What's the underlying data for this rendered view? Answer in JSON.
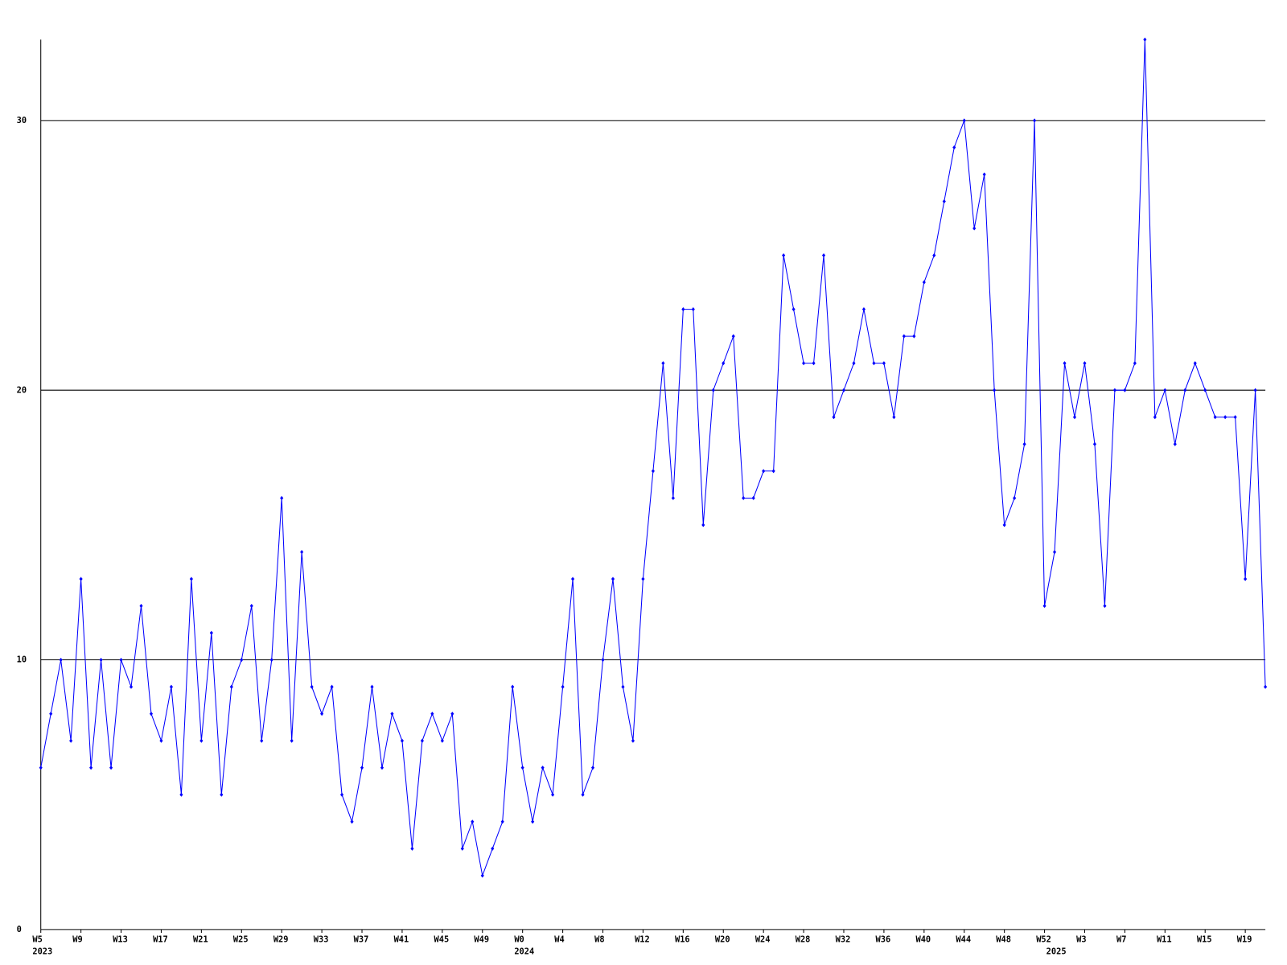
{
  "chart_data": {
    "type": "line",
    "categories": [
      "W5",
      null,
      null,
      null,
      "W9",
      null,
      null,
      null,
      "W13",
      null,
      null,
      null,
      "W17",
      null,
      null,
      null,
      "W21",
      null,
      null,
      null,
      "W25",
      null,
      null,
      null,
      "W29",
      null,
      null,
      null,
      "W33",
      null,
      null,
      null,
      "W37",
      null,
      null,
      null,
      "W41",
      null,
      null,
      null,
      "W45",
      null,
      null,
      null,
      "W49",
      null,
      null,
      null,
      "W0",
      null,
      null,
      null,
      "W4",
      null,
      null,
      null,
      "W8",
      null,
      null,
      null,
      "W12",
      null,
      null,
      null,
      "W16",
      null,
      null,
      null,
      "W20",
      null,
      null,
      null,
      "W24",
      null,
      null,
      null,
      "W28",
      null,
      null,
      null,
      "W32",
      null,
      null,
      null,
      "W36",
      null,
      null,
      null,
      "W40",
      null,
      null,
      null,
      "W44",
      null,
      null,
      null,
      "W48",
      null,
      null,
      null,
      "W52",
      null,
      null,
      null,
      "W3",
      null,
      null,
      null,
      "W7",
      null,
      null,
      null,
      "W11",
      null,
      null,
      null,
      "W15",
      null,
      null,
      null,
      "W19",
      null,
      null
    ],
    "year_labels": [
      "2023",
      null,
      null,
      null,
      null,
      null,
      null,
      null,
      null,
      null,
      null,
      null,
      null,
      null,
      null,
      null,
      null,
      null,
      null,
      null,
      null,
      null,
      null,
      null,
      null,
      null,
      null,
      null,
      null,
      null,
      null,
      null,
      null,
      null,
      null,
      null,
      null,
      null,
      null,
      null,
      null,
      null,
      null,
      null,
      null,
      null,
      null,
      null,
      "2024",
      null,
      null,
      null,
      null,
      null,
      null,
      null,
      null,
      null,
      null,
      null,
      null,
      null,
      null,
      null,
      null,
      null,
      null,
      null,
      null,
      null,
      null,
      null,
      null,
      null,
      null,
      null,
      null,
      null,
      null,
      null,
      null,
      null,
      null,
      null,
      null,
      null,
      null,
      null,
      null,
      null,
      null,
      null,
      null,
      null,
      null,
      null,
      null,
      null,
      null,
      null,
      null,
      "2025",
      null,
      null,
      null,
      null,
      null,
      null,
      null,
      null,
      null,
      null,
      null,
      null,
      null,
      null,
      null,
      null,
      null,
      null,
      null,
      null,
      null
    ],
    "series": [
      {
        "color": "#0000ff",
        "values": [
          6,
          8,
          10,
          7,
          13,
          6,
          10,
          6,
          10,
          9,
          12,
          8,
          7,
          9,
          5,
          13,
          7,
          11,
          5,
          9,
          10,
          12,
          7,
          10,
          16,
          7,
          14,
          9,
          8,
          9,
          5,
          4,
          6,
          9,
          6,
          8,
          7,
          3,
          7,
          8,
          7,
          8,
          3,
          4,
          2,
          3,
          4,
          9,
          6,
          4,
          6,
          5,
          9,
          13,
          5,
          6,
          10,
          13,
          9,
          7,
          13,
          17,
          21,
          16,
          23,
          23,
          15,
          20,
          21,
          22,
          16,
          16,
          17,
          17,
          25,
          23,
          21,
          21,
          25,
          19,
          20,
          21,
          23,
          21,
          21,
          19,
          22,
          22,
          24,
          25,
          27,
          29,
          30,
          26,
          28,
          20,
          15,
          16,
          18,
          30,
          12,
          14,
          21,
          19,
          21,
          18,
          12,
          20,
          20,
          21,
          33,
          19,
          20,
          18,
          20,
          21,
          20,
          19,
          19,
          19,
          13,
          20,
          9
        ]
      }
    ],
    "ylim": [
      0,
      33
    ],
    "yticks": [
      0,
      10,
      20,
      30
    ],
    "grid": true
  }
}
